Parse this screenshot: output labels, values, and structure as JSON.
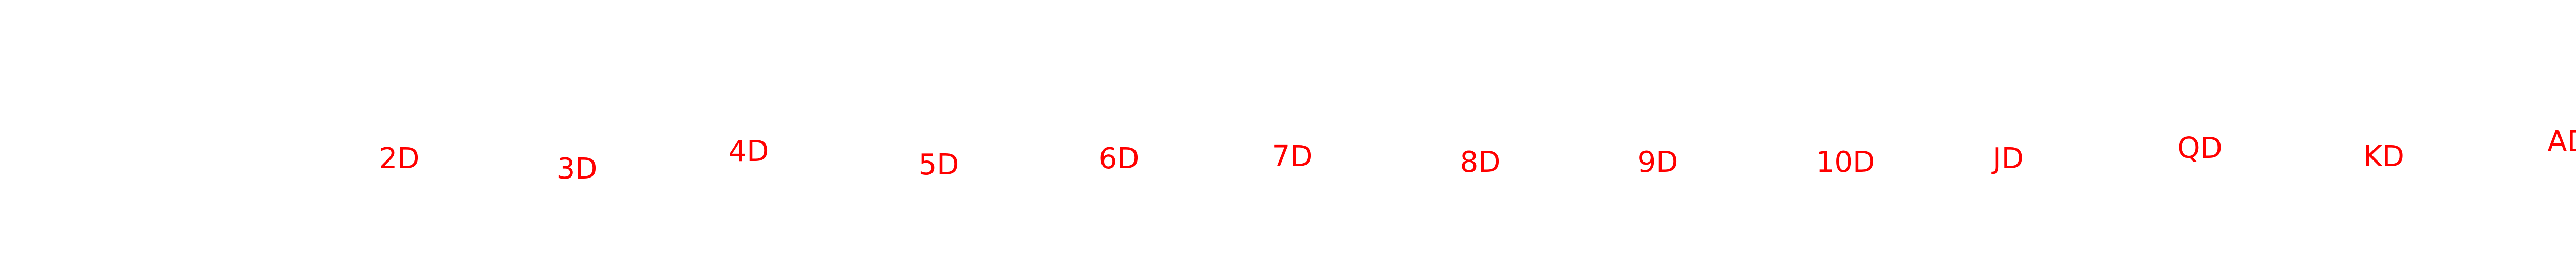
{
  "labels": [
    "2D",
    "3D",
    "4D",
    "5D",
    "6D",
    "7D",
    "8D",
    "9D",
    "10D",
    "JD",
    "QD",
    "KD",
    "AD"
  ],
  "label_color": "#ff0000"
}
